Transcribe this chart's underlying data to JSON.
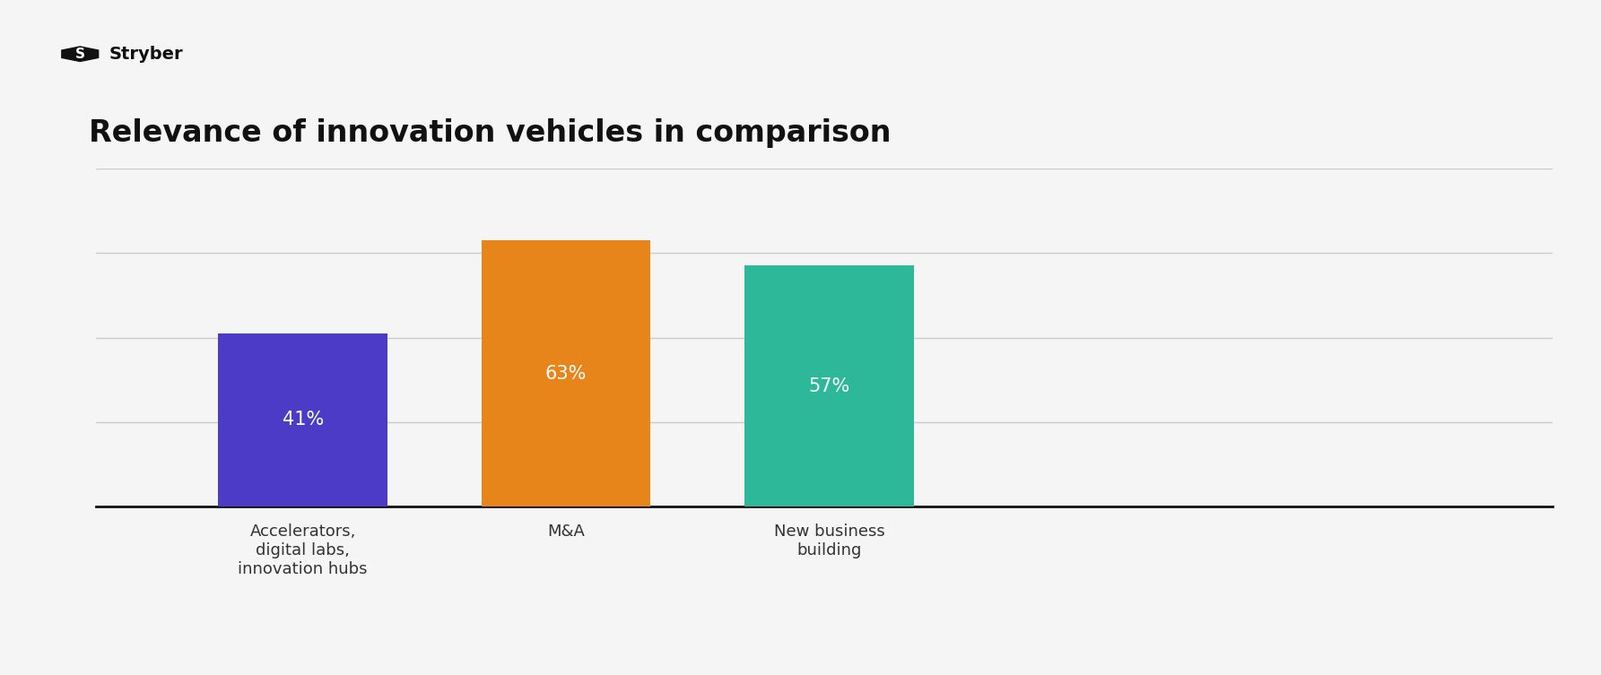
{
  "title": "Relevance of innovation vehicles in comparison",
  "title_fontsize": 24,
  "title_fontweight": "bold",
  "categories": [
    "Accelerators,\ndigital labs,\ninnovation hubs",
    "M&A",
    "New business\nbuilding"
  ],
  "values": [
    41,
    63,
    57
  ],
  "bar_colors": [
    "#4B3BC7",
    "#E8851A",
    "#2DB899"
  ],
  "bar_labels": [
    "41%",
    "63%",
    "57%"
  ],
  "label_color": "#ffffff",
  "label_fontsize": 15,
  "background_color": "#f5f5f5",
  "ylim": [
    0,
    80
  ],
  "bar_width": 0.18,
  "gridline_color": "#cccccc",
  "gridline_linewidth": 1.0,
  "tick_fontsize": 13,
  "logo_text": "Stryber",
  "logo_fontsize": 15,
  "x_positions": [
    0.22,
    0.5,
    0.78
  ],
  "xlim": [
    0.0,
    1.55
  ]
}
